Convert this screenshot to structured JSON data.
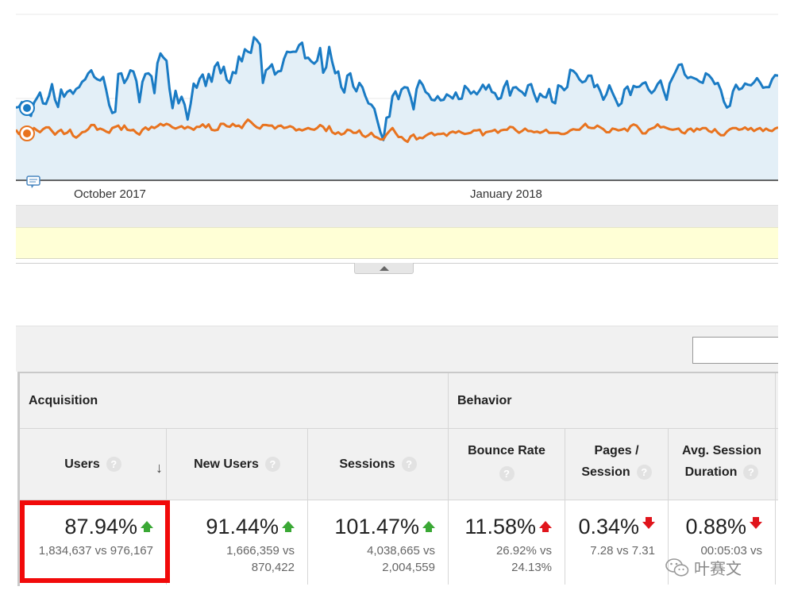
{
  "chart": {
    "x_axis_labels": [
      "October 2017",
      "January 2018"
    ],
    "colors": {
      "series_a": "#1a7bc4",
      "series_b": "#e8731f",
      "fill": "#e3eff7",
      "axis": "#333333"
    },
    "note_icon": "annotation-icon",
    "series_a_values": [
      121,
      122,
      130,
      123,
      111,
      107,
      129,
      137,
      146,
      128,
      127,
      140,
      160,
      134,
      122,
      151,
      139,
      147,
      150,
      144,
      152,
      155,
      164,
      168,
      178,
      183,
      172,
      168,
      166,
      172,
      150,
      125,
      112,
      114,
      177,
      178,
      162,
      170,
      183,
      181,
      165,
      130,
      164,
      177,
      178,
      173,
      145,
      195,
      211,
      204,
      199,
      152,
      120,
      149,
      128,
      139,
      126,
      101,
      127,
      161,
      154,
      169,
      176,
      157,
      177,
      164,
      189,
      196,
      178,
      189,
      167,
      162,
      180,
      178,
      206,
      198,
      218,
      214,
      212,
      238,
      233,
      226,
      162,
      183,
      187,
      193,
      176,
      181,
      182,
      202,
      214,
      213,
      214,
      214,
      225,
      229,
      203,
      204,
      198,
      194,
      199,
      220,
      179,
      188,
      222,
      197,
      178,
      181,
      155,
      146,
      174,
      178,
      156,
      148,
      162,
      155,
      140,
      128,
      126,
      119,
      99,
      80,
      67,
      104,
      106,
      140,
      148,
      135,
      151,
      155,
      154,
      139,
      118,
      152,
      166,
      159,
      147,
      143,
      134,
      133,
      140,
      133,
      134,
      143,
      140,
      136,
      146,
      135,
      136,
      157,
      152,
      144,
      148,
      143,
      150,
      159,
      151,
      159,
      147,
      145,
      135,
      137,
      155,
      165,
      141,
      154,
      155,
      150,
      147,
      141,
      158,
      160,
      144,
      131,
      144,
      139,
      138,
      152,
      131,
      128,
      158,
      156,
      150,
      155,
      184,
      182,
      177,
      168,
      163,
      165,
      174,
      174,
      155,
      159,
      148,
      134,
      143,
      158,
      146,
      135,
      124,
      128,
      151,
      156,
      142,
      157,
      155,
      156,
      161,
      163,
      151,
      145,
      150,
      160,
      166,
      149,
      134,
      161,
      171,
      181,
      192,
      193,
      176,
      170,
      172,
      170,
      168,
      164,
      162,
      178,
      175,
      169,
      160,
      162,
      150,
      131,
      121,
      124,
      148,
      159,
      151,
      153,
      161,
      159,
      158,
      163,
      170,
      163,
      154,
      155,
      155,
      168,
      175,
      174
    ],
    "series_b_values": [
      84,
      77,
      81,
      78,
      75,
      77,
      87,
      83,
      80,
      85,
      88,
      88,
      82,
      76,
      81,
      84,
      77,
      79,
      84,
      74,
      71,
      75,
      80,
      81,
      85,
      92,
      92,
      84,
      86,
      84,
      81,
      79,
      87,
      89,
      91,
      84,
      91,
      84,
      83,
      84,
      79,
      76,
      84,
      88,
      84,
      89,
      87,
      90,
      94,
      91,
      94,
      92,
      88,
      86,
      88,
      90,
      86,
      89,
      87,
      84,
      89,
      89,
      93,
      88,
      93,
      84,
      83,
      84,
      94,
      94,
      90,
      89,
      94,
      90,
      91,
      87,
      95,
      101,
      97,
      92,
      88,
      86,
      92,
      92,
      91,
      91,
      86,
      90,
      91,
      87,
      88,
      90,
      88,
      83,
      85,
      83,
      85,
      87,
      85,
      84,
      87,
      92,
      89,
      82,
      90,
      80,
      77,
      80,
      76,
      78,
      84,
      83,
      79,
      79,
      83,
      75,
      72,
      75,
      79,
      73,
      71,
      68,
      68,
      76,
      82,
      87,
      79,
      72,
      72,
      67,
      64,
      73,
      76,
      68,
      71,
      70,
      74,
      77,
      79,
      75,
      77,
      77,
      78,
      74,
      79,
      81,
      79,
      82,
      79,
      77,
      78,
      79,
      83,
      83,
      84,
      75,
      80,
      81,
      82,
      84,
      79,
      83,
      84,
      84,
      89,
      88,
      83,
      79,
      82,
      86,
      82,
      82,
      80,
      81,
      79,
      81,
      84,
      79,
      79,
      79,
      79,
      77,
      77,
      79,
      83,
      85,
      84,
      84,
      89,
      94,
      88,
      87,
      87,
      91,
      88,
      85,
      80,
      80,
      86,
      85,
      83,
      84,
      86,
      82,
      90,
      93,
      91,
      85,
      78,
      78,
      84,
      86,
      88,
      93,
      88,
      89,
      87,
      85,
      84,
      85,
      86,
      80,
      78,
      84,
      86,
      81,
      86,
      84,
      87,
      87,
      82,
      80,
      85,
      79,
      75,
      75,
      81,
      85,
      87,
      87,
      84,
      85,
      88,
      84,
      87,
      82,
      85,
      87,
      82,
      86,
      83,
      82,
      86,
      88
    ],
    "value_range": [
      0,
      300
    ]
  },
  "table": {
    "group_headers": {
      "acquisition": "Acquisition",
      "behavior": "Behavior"
    },
    "columns": [
      {
        "label": "Users",
        "label2": "",
        "pct": "87.94%",
        "cmp_line1": "1,834,637 vs 976,167",
        "cmp_line2": "",
        "trend": "up-good"
      },
      {
        "label": "New Users",
        "label2": "",
        "pct": "91.44%",
        "cmp_line1": "1,666,359 vs",
        "cmp_line2": "870,422",
        "trend": "up-good"
      },
      {
        "label": "Sessions",
        "label2": "",
        "pct": "101.47%",
        "cmp_line1": "4,038,665 vs",
        "cmp_line2": "2,004,559",
        "trend": "up-good"
      },
      {
        "label": "Bounce Rate",
        "label2": "",
        "pct": "11.58%",
        "cmp_line1": "26.92% vs",
        "cmp_line2": "24.13%",
        "trend": "up-bad"
      },
      {
        "label": "Pages /",
        "label2": "Session",
        "pct": "0.34%",
        "cmp_line1": "7.28 vs 7.31",
        "cmp_line2": "",
        "trend": "down-bad"
      },
      {
        "label": "Avg. Session",
        "label2": "Duration",
        "pct": "0.88%",
        "cmp_line1": "00:05:03 vs",
        "cmp_line2": "",
        "trend": "down-bad"
      }
    ],
    "help_glyph": "?",
    "sort_glyph": "↓",
    "sort_icon": "sort-down-arrow-icon"
  },
  "watermark": {
    "text": "叶赛文",
    "icon": "wechat-icon"
  }
}
